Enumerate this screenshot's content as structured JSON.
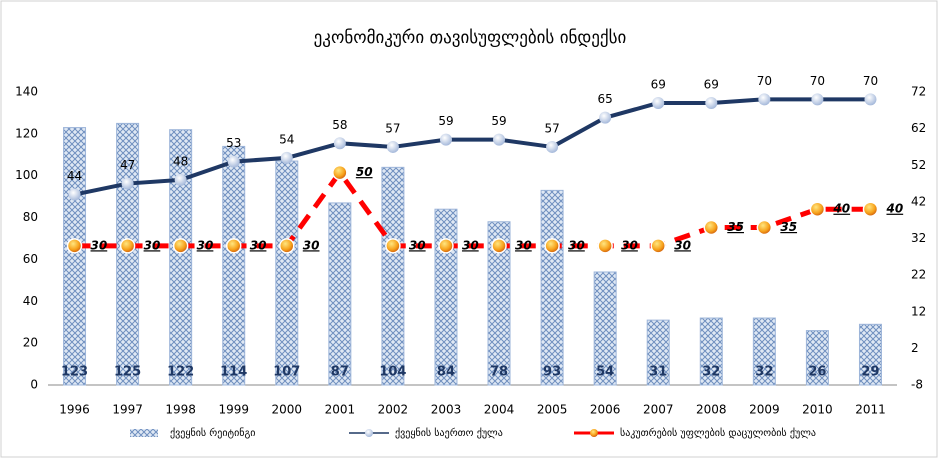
{
  "chart_data": {
    "type": "combo",
    "title": "ეკონომიკური თავისუფლების ინდექსი",
    "categories": [
      "1996",
      "1997",
      "1998",
      "1999",
      "2000",
      "2001",
      "2002",
      "2003",
      "2004",
      "2005",
      "2006",
      "2007",
      "2008",
      "2009",
      "2010",
      "2011"
    ],
    "series": [
      {
        "name": "ქვეყნის რეიტინგი",
        "type": "bar",
        "axis": "y",
        "color": "#9db5d9",
        "values": [
          123,
          125,
          122,
          114,
          107,
          87,
          104,
          84,
          78,
          93,
          54,
          31,
          32,
          32,
          26,
          29
        ]
      },
      {
        "name": "ქვეყნის საერთო ქულა",
        "type": "line",
        "axis": "y2",
        "color": "#1f3864",
        "values": [
          44,
          47,
          48,
          53,
          54,
          58,
          57,
          59,
          59,
          57,
          65,
          69,
          69,
          70,
          70,
          70
        ]
      },
      {
        "name": "საკუთრების უფლების დაცულობის ქულა",
        "type": "line",
        "axis": "y2",
        "color": "#ff0000",
        "values": [
          30,
          30,
          30,
          30,
          30,
          50,
          30,
          30,
          30,
          30,
          30,
          30,
          35,
          35,
          40,
          40
        ]
      }
    ],
    "ylim": [
      0,
      140
    ],
    "yticks": [
      0,
      20,
      40,
      60,
      80,
      100,
      120,
      140
    ],
    "y2lim": [
      -8,
      72
    ],
    "y2ticks": [
      -8,
      2,
      12,
      22,
      32,
      42,
      52,
      62,
      72
    ],
    "grid": false,
    "legend": "bottom"
  }
}
